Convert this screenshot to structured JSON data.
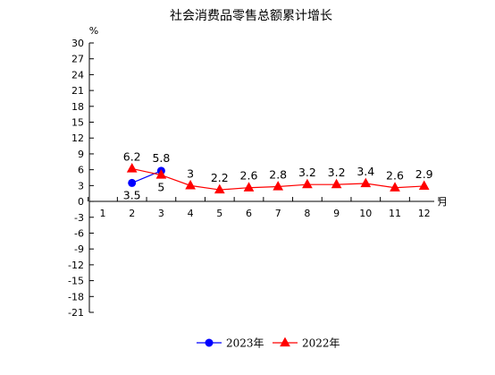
{
  "chart_data": {
    "type": "line",
    "title": "社会消费品零售总额累计增长",
    "ylabel": "%",
    "xlabel": "月",
    "ylim": [
      -21,
      30
    ],
    "yticks": [
      30,
      27,
      24,
      21,
      18,
      15,
      12,
      9,
      6,
      3,
      0,
      -3,
      -6,
      -9,
      -12,
      -15,
      -18,
      -21
    ],
    "categories": [
      "1",
      "2",
      "3",
      "4",
      "5",
      "6",
      "7",
      "8",
      "9",
      "10",
      "11",
      "12"
    ],
    "grid": false,
    "legend_position": "bottom",
    "series": [
      {
        "name": "2023年",
        "color": "#0000ff",
        "marker": "circle",
        "values": [
          null,
          3.5,
          5.8,
          null,
          null,
          null,
          null,
          null,
          null,
          null,
          null,
          null
        ],
        "labels": [
          "",
          "3.5",
          "5.8",
          "",
          "",
          "",
          "",
          "",
          "",
          "",
          "",
          ""
        ]
      },
      {
        "name": "2022年",
        "color": "#ff0000",
        "marker": "triangle",
        "values": [
          null,
          6.2,
          5,
          3,
          2.2,
          2.6,
          2.8,
          3.2,
          3.2,
          3.4,
          2.6,
          2.9
        ],
        "labels": [
          "",
          "6.2",
          "5",
          "3",
          "2.2",
          "2.6",
          "2.8",
          "3.2",
          "3.2",
          "3.4",
          "2.6",
          "2.9"
        ]
      }
    ]
  }
}
